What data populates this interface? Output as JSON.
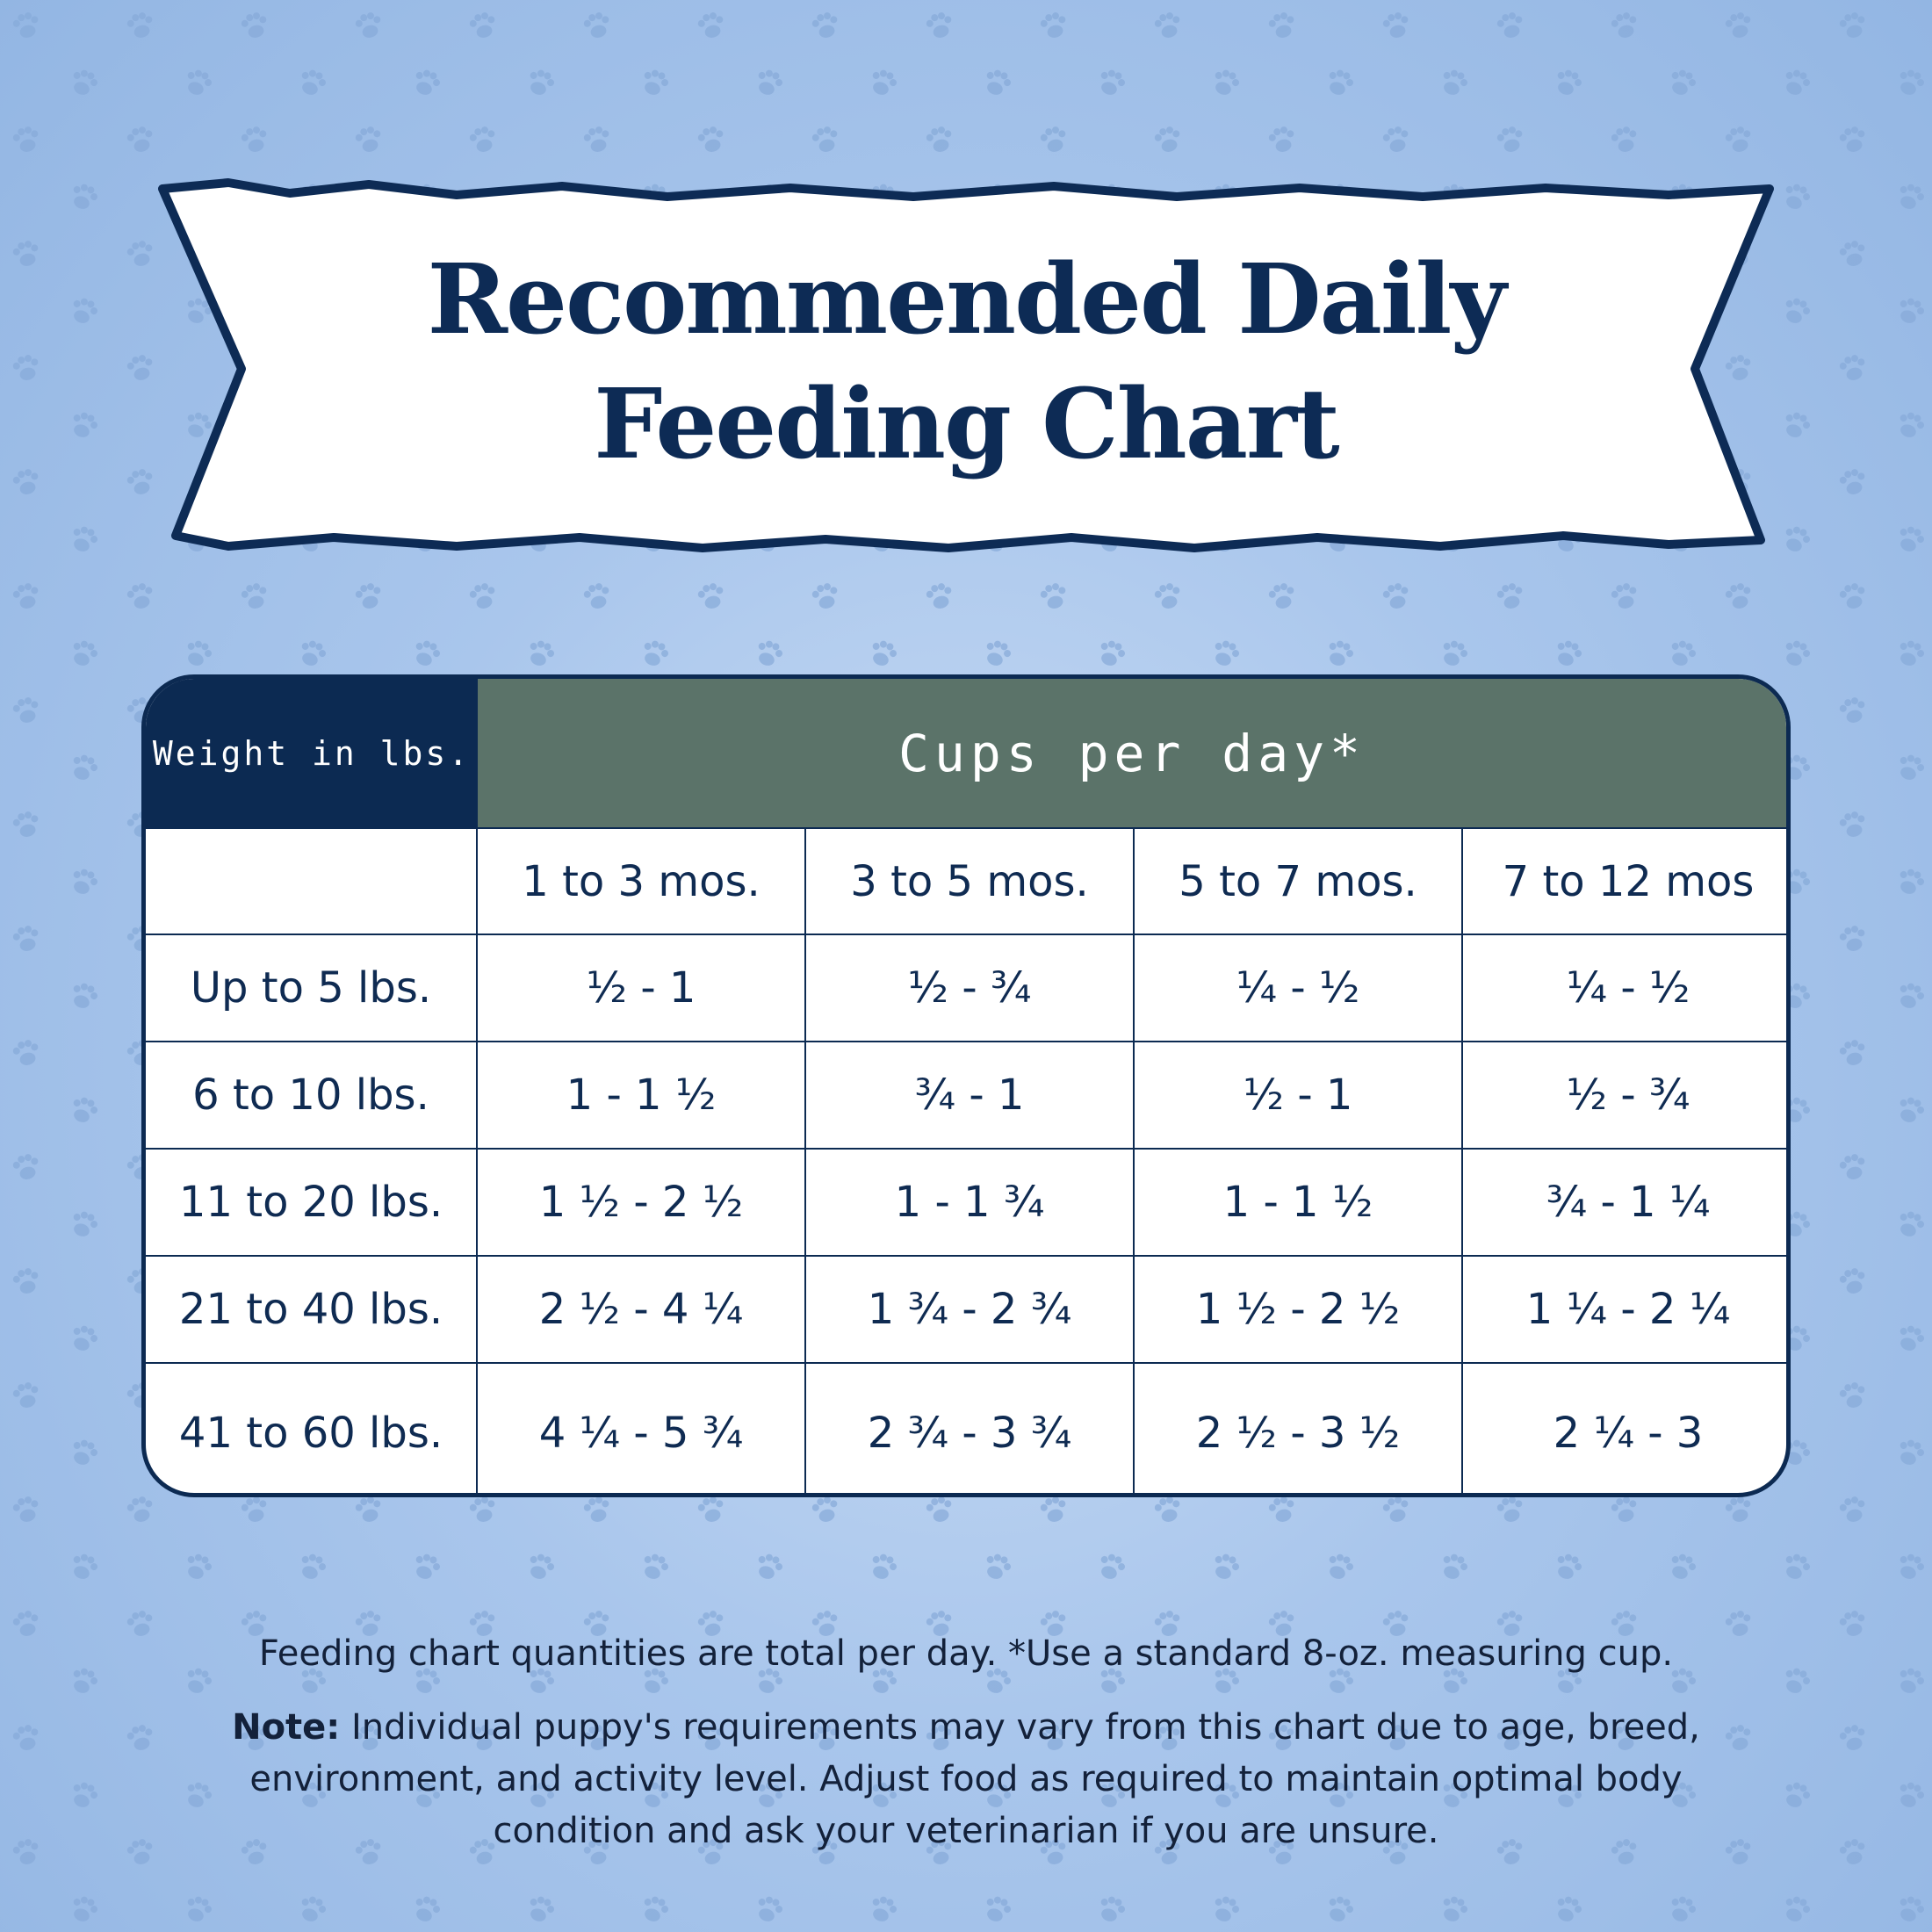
{
  "title": {
    "line1": "Recommended Daily",
    "line2": "Feeding Chart"
  },
  "colors": {
    "navy": "#0c2a52",
    "header_green": "#5b7369",
    "background": "#a9c6ec"
  },
  "background_icon": "paw-print-icon",
  "table": {
    "weight_header": "Weight in lbs.",
    "cups_header": "Cups per day*",
    "columns": [
      "1 to 3 mos.",
      "3 to 5 mos.",
      "5 to 7 mos.",
      "7 to 12 mos"
    ],
    "rows": [
      {
        "weight": "Up to 5 lbs.",
        "values": [
          "½ - 1",
          "½ - ¾",
          "¼ - ½",
          "¼ - ½"
        ]
      },
      {
        "weight": "6 to 10 lbs.",
        "values": [
          "1 - 1 ½",
          "¾ - 1",
          "½ - 1",
          "½ - ¾"
        ]
      },
      {
        "weight": "11 to 20 lbs.",
        "values": [
          "1 ½ - 2 ½",
          "1 - 1 ¾",
          "1 - 1 ½",
          "¾ - 1 ¼"
        ]
      },
      {
        "weight": "21 to 40 lbs.",
        "values": [
          "2 ½ - 4 ¼",
          "1 ¾ - 2 ¾",
          "1 ½ - 2 ½",
          "1 ¼ - 2 ¼"
        ]
      },
      {
        "weight": "41 to 60 lbs.",
        "values": [
          "4 ¼ - 5 ¾",
          "2 ¾ - 3 ¾",
          "2 ½ - 3 ½",
          "2 ¼ - 3"
        ]
      }
    ]
  },
  "footer": {
    "line1": "Feeding chart quantities are total per day. *Use a standard 8-oz. measuring cup.",
    "note_label": "Note:",
    "note_line1": " Individual puppy's requirements may vary from this chart due to age, breed,",
    "note_line2": "environment, and activity level. Adjust food as required to maintain optimal body",
    "note_line3": "condition and ask your veterinarian if you are unsure."
  }
}
